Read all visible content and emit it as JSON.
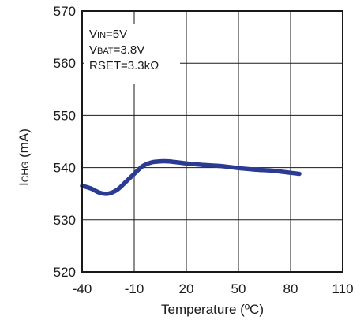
{
  "chart_data": {
    "type": "line",
    "xlabel": "Temperature (ºC)",
    "ylabel_main": "I",
    "ylabel_sub": "CHG",
    "ylabel_unit": " (mA)",
    "xlim": [
      -40,
      110
    ],
    "ylim": [
      520,
      570
    ],
    "xticks": [
      -40,
      -10,
      20,
      50,
      80,
      110
    ],
    "yticks": [
      520,
      530,
      540,
      550,
      560,
      570
    ],
    "xtick_labels": [
      "-40",
      "-10",
      "20",
      "50",
      "80",
      "110"
    ],
    "ytick_labels": [
      "520",
      "530",
      "540",
      "550",
      "560",
      "570"
    ],
    "grid": true,
    "annotations": [
      {
        "main": "V",
        "sub": "IN",
        "rest": "=5V"
      },
      {
        "main": "V",
        "sub": "BAT",
        "rest": "=3.8V"
      },
      {
        "main": "RSET=3.3kΩ",
        "sub": "",
        "rest": ""
      }
    ],
    "series": [
      {
        "color": "#2b3a93",
        "x": [
          -40,
          -35,
          -30,
          -25,
          -20,
          -15,
          -10,
          -5,
          0,
          5,
          10,
          20,
          30,
          40,
          50,
          60,
          70,
          80,
          85
        ],
        "y": [
          536.5,
          536.0,
          535.2,
          535.0,
          535.7,
          537.2,
          538.8,
          540.3,
          541.0,
          541.2,
          541.2,
          540.8,
          540.5,
          540.3,
          539.9,
          539.6,
          539.4,
          539.0,
          538.8
        ]
      }
    ]
  }
}
